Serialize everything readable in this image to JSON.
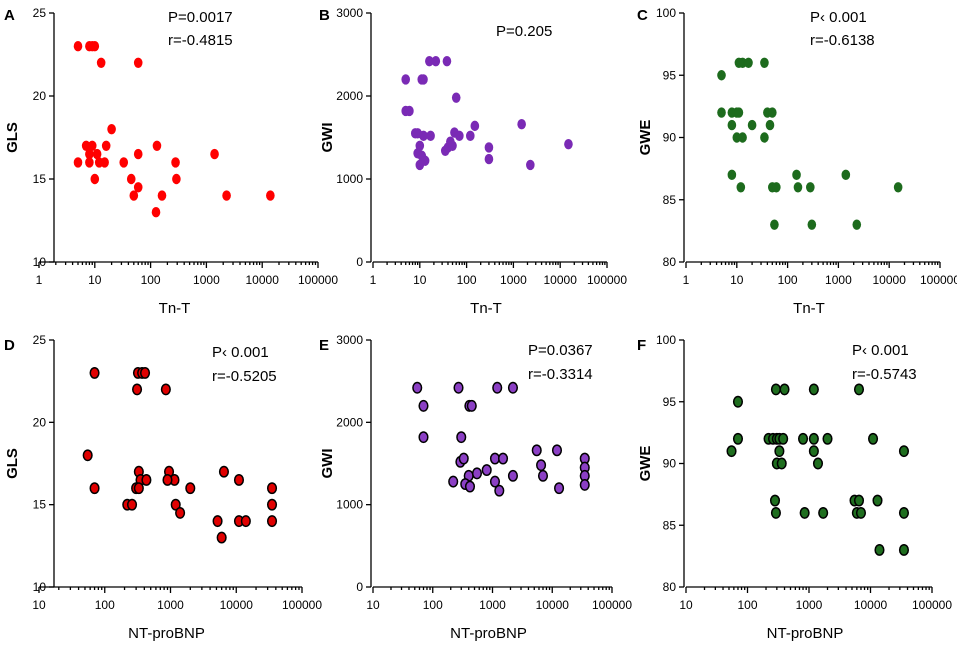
{
  "chart_data": [
    {
      "type": "scatter",
      "letter": "A",
      "xlabel": "Tn-T",
      "ylabel": "GLS",
      "xscale": "log",
      "xlim": [
        1,
        100000
      ],
      "ylim": [
        10,
        25
      ],
      "xticks": [
        1,
        10,
        100,
        1000,
        10000,
        100000
      ],
      "xtick_labels": [
        "1",
        "10",
        "100",
        "1000",
        "10000",
        "100000"
      ],
      "yticks": [
        10,
        15,
        20,
        25
      ],
      "ytick_labels": [
        "10",
        "15",
        "20",
        "25"
      ],
      "marker_fill": "#ff0000",
      "marker_stroke": "none",
      "annotations": [
        "P=0.0017",
        "r=-0.4815"
      ],
      "points": [
        [
          5,
          23
        ],
        [
          8,
          23
        ],
        [
          9,
          23
        ],
        [
          10,
          23
        ],
        [
          13,
          22
        ],
        [
          60,
          22
        ],
        [
          20,
          18
        ],
        [
          7,
          17
        ],
        [
          9,
          17
        ],
        [
          11,
          16.5
        ],
        [
          8,
          16.5
        ],
        [
          16,
          17
        ],
        [
          5,
          16
        ],
        [
          8,
          16
        ],
        [
          12,
          16
        ],
        [
          15,
          16
        ],
        [
          10,
          15
        ],
        [
          33,
          16
        ],
        [
          45,
          15
        ],
        [
          130,
          17
        ],
        [
          60,
          16.5
        ],
        [
          280,
          16
        ],
        [
          1400,
          16.5
        ],
        [
          50,
          14
        ],
        [
          60,
          14.5
        ],
        [
          290,
          15
        ],
        [
          160,
          14
        ],
        [
          125,
          13
        ],
        [
          2300,
          14
        ],
        [
          14000,
          14
        ]
      ]
    },
    {
      "type": "scatter",
      "letter": "B",
      "xlabel": "Tn-T",
      "ylabel": "GWI",
      "xscale": "log",
      "xlim": [
        1,
        100000
      ],
      "ylim": [
        0,
        3000
      ],
      "xticks": [
        1,
        10,
        100,
        1000,
        10000,
        100000
      ],
      "xtick_labels": [
        "1",
        "10",
        "100",
        "1000",
        "10000",
        "100000"
      ],
      "yticks": [
        0,
        1000,
        2000,
        3000
      ],
      "ytick_labels": [
        "0",
        "1000",
        "2000",
        "3000"
      ],
      "marker_fill": "#7a2ab5",
      "marker_stroke": "none",
      "annotations": [
        "P=0.205"
      ],
      "points": [
        [
          5,
          2200
        ],
        [
          16,
          2420
        ],
        [
          22,
          2420
        ],
        [
          38,
          2420
        ],
        [
          11,
          2200
        ],
        [
          12,
          2200
        ],
        [
          6,
          1820
        ],
        [
          5,
          1820
        ],
        [
          60,
          1980
        ],
        [
          9,
          1550
        ],
        [
          12,
          1520
        ],
        [
          17,
          1520
        ],
        [
          8,
          1550
        ],
        [
          10,
          1400
        ],
        [
          9,
          1310
        ],
        [
          11,
          1280
        ],
        [
          13,
          1220
        ],
        [
          10,
          1170
        ],
        [
          40,
          1380
        ],
        [
          55,
          1560
        ],
        [
          45,
          1450
        ],
        [
          70,
          1520
        ],
        [
          150,
          1640
        ],
        [
          35,
          1340
        ],
        [
          50,
          1400
        ],
        [
          120,
          1520
        ],
        [
          300,
          1380
        ],
        [
          300,
          1240
        ],
        [
          1500,
          1660
        ],
        [
          2300,
          1170
        ],
        [
          15000,
          1420
        ]
      ]
    },
    {
      "type": "scatter",
      "letter": "C",
      "xlabel": "Tn-T",
      "ylabel": "GWE",
      "xscale": "log",
      "xlim": [
        1,
        100000
      ],
      "ylim": [
        80,
        100
      ],
      "xticks": [
        1,
        10,
        100,
        1000,
        10000,
        100000
      ],
      "xtick_labels": [
        "1",
        "10",
        "100",
        "1000",
        "10000",
        "100000"
      ],
      "yticks": [
        80,
        85,
        90,
        95,
        100
      ],
      "ytick_labels": [
        "80",
        "85",
        "90",
        "95",
        "100"
      ],
      "marker_fill": "#1d6b1d",
      "marker_stroke": "none",
      "annotations": [
        "P‹ 0.001",
        "r=-0.6138"
      ],
      "points": [
        [
          5,
          95
        ],
        [
          13,
          96
        ],
        [
          17,
          96
        ],
        [
          11,
          96
        ],
        [
          35,
          96
        ],
        [
          5,
          92
        ],
        [
          8,
          92
        ],
        [
          10,
          92
        ],
        [
          11,
          92
        ],
        [
          20,
          91
        ],
        [
          40,
          92
        ],
        [
          50,
          92
        ],
        [
          45,
          91
        ],
        [
          8,
          91
        ],
        [
          10,
          90
        ],
        [
          13,
          90
        ],
        [
          35,
          90
        ],
        [
          8,
          87
        ],
        [
          12,
          86
        ],
        [
          50,
          86
        ],
        [
          60,
          86
        ],
        [
          150,
          87
        ],
        [
          160,
          86
        ],
        [
          280,
          86
        ],
        [
          1400,
          87
        ],
        [
          15000,
          86
        ],
        [
          55,
          83
        ],
        [
          300,
          83
        ],
        [
          2300,
          83
        ]
      ]
    },
    {
      "type": "scatter",
      "letter": "D",
      "xlabel": "NT-proBNP",
      "ylabel": "GLS",
      "xscale": "log",
      "xlim": [
        10,
        100000
      ],
      "ylim": [
        10,
        25
      ],
      "xticks": [
        10,
        100,
        1000,
        10000,
        100000
      ],
      "xtick_labels": [
        "10",
        "100",
        "1000",
        "10000",
        "100000"
      ],
      "yticks": [
        10,
        15,
        20,
        25
      ],
      "ytick_labels": [
        "10",
        "15",
        "20",
        "25"
      ],
      "marker_fill": "#e00000",
      "marker_stroke": "#000000",
      "annotations": [
        "P‹ 0.001",
        "r=-0.5205"
      ],
      "points": [
        [
          70,
          23
        ],
        [
          320,
          23
        ],
        [
          370,
          23
        ],
        [
          410,
          23
        ],
        [
          310,
          22
        ],
        [
          850,
          22
        ],
        [
          55,
          18
        ],
        [
          70,
          16
        ],
        [
          300,
          16
        ],
        [
          330,
          17
        ],
        [
          350,
          16.5
        ],
        [
          430,
          16.5
        ],
        [
          330,
          16
        ],
        [
          950,
          17
        ],
        [
          1150,
          16.5
        ],
        [
          900,
          16.5
        ],
        [
          2000,
          16
        ],
        [
          6500,
          17
        ],
        [
          11000,
          16.5
        ],
        [
          1200,
          15
        ],
        [
          220,
          15
        ],
        [
          260,
          15
        ],
        [
          1400,
          14.5
        ],
        [
          5200,
          14
        ],
        [
          6000,
          13
        ],
        [
          11000,
          14
        ],
        [
          14000,
          14
        ],
        [
          35000,
          16
        ],
        [
          35000,
          15
        ],
        [
          35000,
          14
        ]
      ]
    },
    {
      "type": "scatter",
      "letter": "E",
      "xlabel": "NT-proBNP",
      "ylabel": "GWI",
      "xscale": "log",
      "xlim": [
        10,
        100000
      ],
      "ylim": [
        0,
        3000
      ],
      "xticks": [
        10,
        100,
        1000,
        10000,
        100000
      ],
      "xtick_labels": [
        "10",
        "100",
        "1000",
        "10000",
        "100000"
      ],
      "yticks": [
        0,
        1000,
        2000,
        3000
      ],
      "ytick_labels": [
        "0",
        "1000",
        "2000",
        "3000"
      ],
      "marker_fill": "#8b3fc4",
      "marker_stroke": "#000000",
      "annotations": [
        "P=0.0367",
        "r=-0.3314"
      ],
      "points": [
        [
          55,
          2420
        ],
        [
          270,
          2420
        ],
        [
          1200,
          2420
        ],
        [
          2200,
          2420
        ],
        [
          70,
          2200
        ],
        [
          410,
          2200
        ],
        [
          450,
          2200
        ],
        [
          70,
          1820
        ],
        [
          300,
          1820
        ],
        [
          290,
          1520
        ],
        [
          330,
          1560
        ],
        [
          1100,
          1560
        ],
        [
          1500,
          1560
        ],
        [
          800,
          1420
        ],
        [
          400,
          1350
        ],
        [
          220,
          1280
        ],
        [
          350,
          1250
        ],
        [
          420,
          1220
        ],
        [
          550,
          1380
        ],
        [
          1100,
          1280
        ],
        [
          1300,
          1170
        ],
        [
          2200,
          1350
        ],
        [
          5500,
          1660
        ],
        [
          6500,
          1480
        ],
        [
          12000,
          1660
        ],
        [
          7000,
          1350
        ],
        [
          13000,
          1200
        ],
        [
          35000,
          1560
        ],
        [
          35000,
          1450
        ],
        [
          35000,
          1350
        ],
        [
          35000,
          1240
        ]
      ]
    },
    {
      "type": "scatter",
      "letter": "F",
      "xlabel": "NT-proBNP",
      "ylabel": "GWE",
      "xscale": "log",
      "xlim": [
        10,
        100000
      ],
      "ylim": [
        80,
        100
      ],
      "xticks": [
        10,
        100,
        1000,
        10000,
        100000
      ],
      "xtick_labels": [
        "10",
        "100",
        "1000",
        "10000",
        "100000"
      ],
      "yticks": [
        80,
        85,
        90,
        95,
        100
      ],
      "ytick_labels": [
        "80",
        "85",
        "90",
        "95",
        "100"
      ],
      "marker_fill": "#1f6e1f",
      "marker_stroke": "#000000",
      "annotations": [
        "P‹ 0.001",
        "r=-0.5743"
      ],
      "points": [
        [
          70,
          95
        ],
        [
          290,
          96
        ],
        [
          400,
          96
        ],
        [
          1200,
          96
        ],
        [
          6500,
          96
        ],
        [
          55,
          91
        ],
        [
          70,
          92
        ],
        [
          220,
          92
        ],
        [
          260,
          92
        ],
        [
          300,
          92
        ],
        [
          330,
          92
        ],
        [
          380,
          92
        ],
        [
          330,
          91
        ],
        [
          800,
          92
        ],
        [
          1200,
          92
        ],
        [
          1200,
          91
        ],
        [
          1400,
          90
        ],
        [
          2000,
          92
        ],
        [
          11000,
          92
        ],
        [
          35000,
          91
        ],
        [
          300,
          90
        ],
        [
          360,
          90
        ],
        [
          280,
          87
        ],
        [
          290,
          86
        ],
        [
          850,
          86
        ],
        [
          1700,
          86
        ],
        [
          5500,
          87
        ],
        [
          6000,
          86
        ],
        [
          6500,
          87
        ],
        [
          7000,
          86
        ],
        [
          13000,
          87
        ],
        [
          14000,
          83
        ],
        [
          35000,
          86
        ],
        [
          35000,
          83
        ]
      ]
    }
  ]
}
